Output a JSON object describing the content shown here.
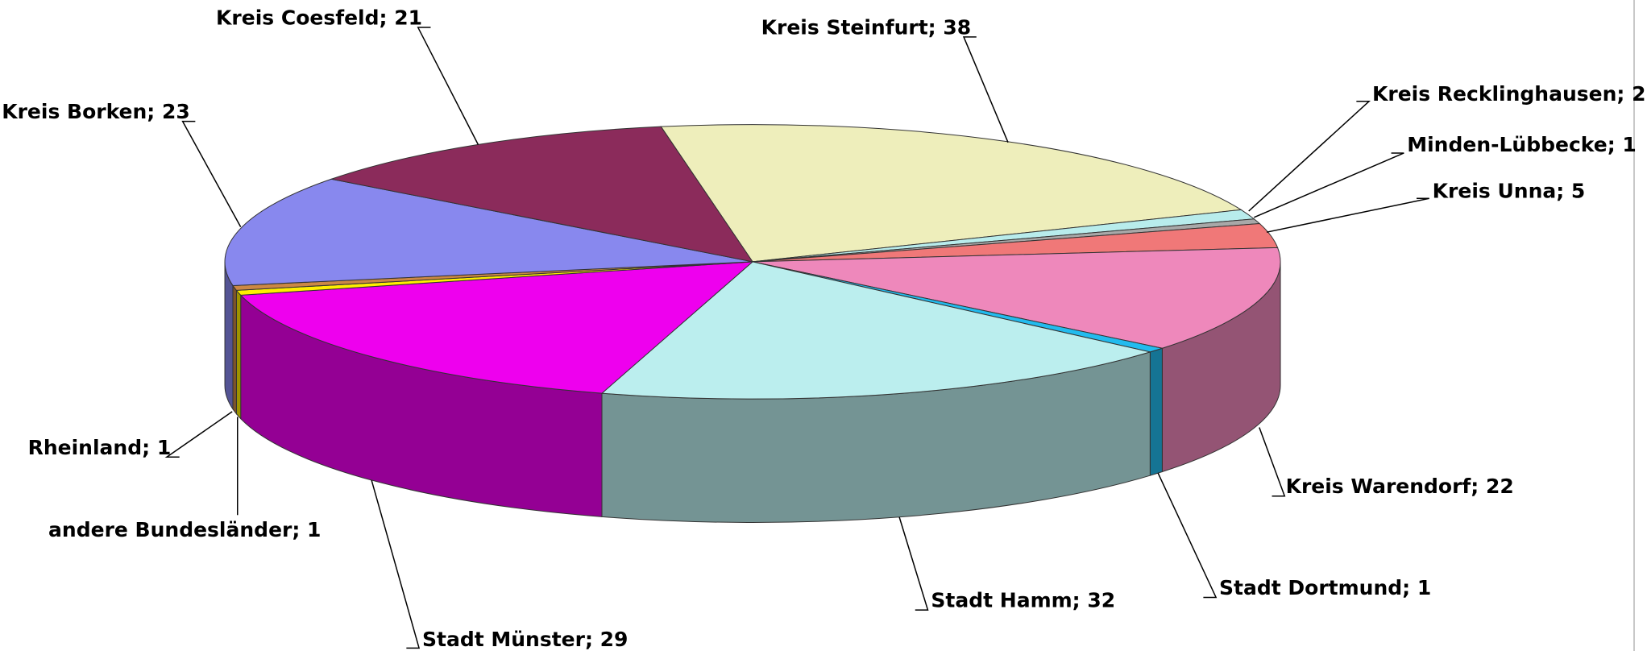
{
  "chart_data": {
    "type": "pie3d",
    "categories": [
      "Kreis Steinfurt; 38",
      "Kreis Recklinghausen; 2",
      "Minden-Lübbecke; 1",
      "Kreis Unna; 5",
      "Kreis Warendorf; 22",
      "Stadt Dortmund; 1",
      "Stadt Hamm; 32",
      "Stadt Münster; 29",
      "andere Bundesländer; 1",
      "Rheinland; 1",
      "Kreis Borken; 23",
      "Kreis Coesfeld; 21"
    ],
    "values": [
      38,
      2,
      1,
      5,
      22,
      1,
      32,
      29,
      1,
      1,
      23,
      21
    ],
    "colors": [
      "#eeeebb",
      "#b8ecec",
      "#a8a8a8",
      "#f07878",
      "#ee88bb",
      "#22bbee",
      "#bbeeee",
      "#ee00ee",
      "#ffee00",
      "#cc8844",
      "#8888ee",
      "#8b2b5b"
    ]
  }
}
